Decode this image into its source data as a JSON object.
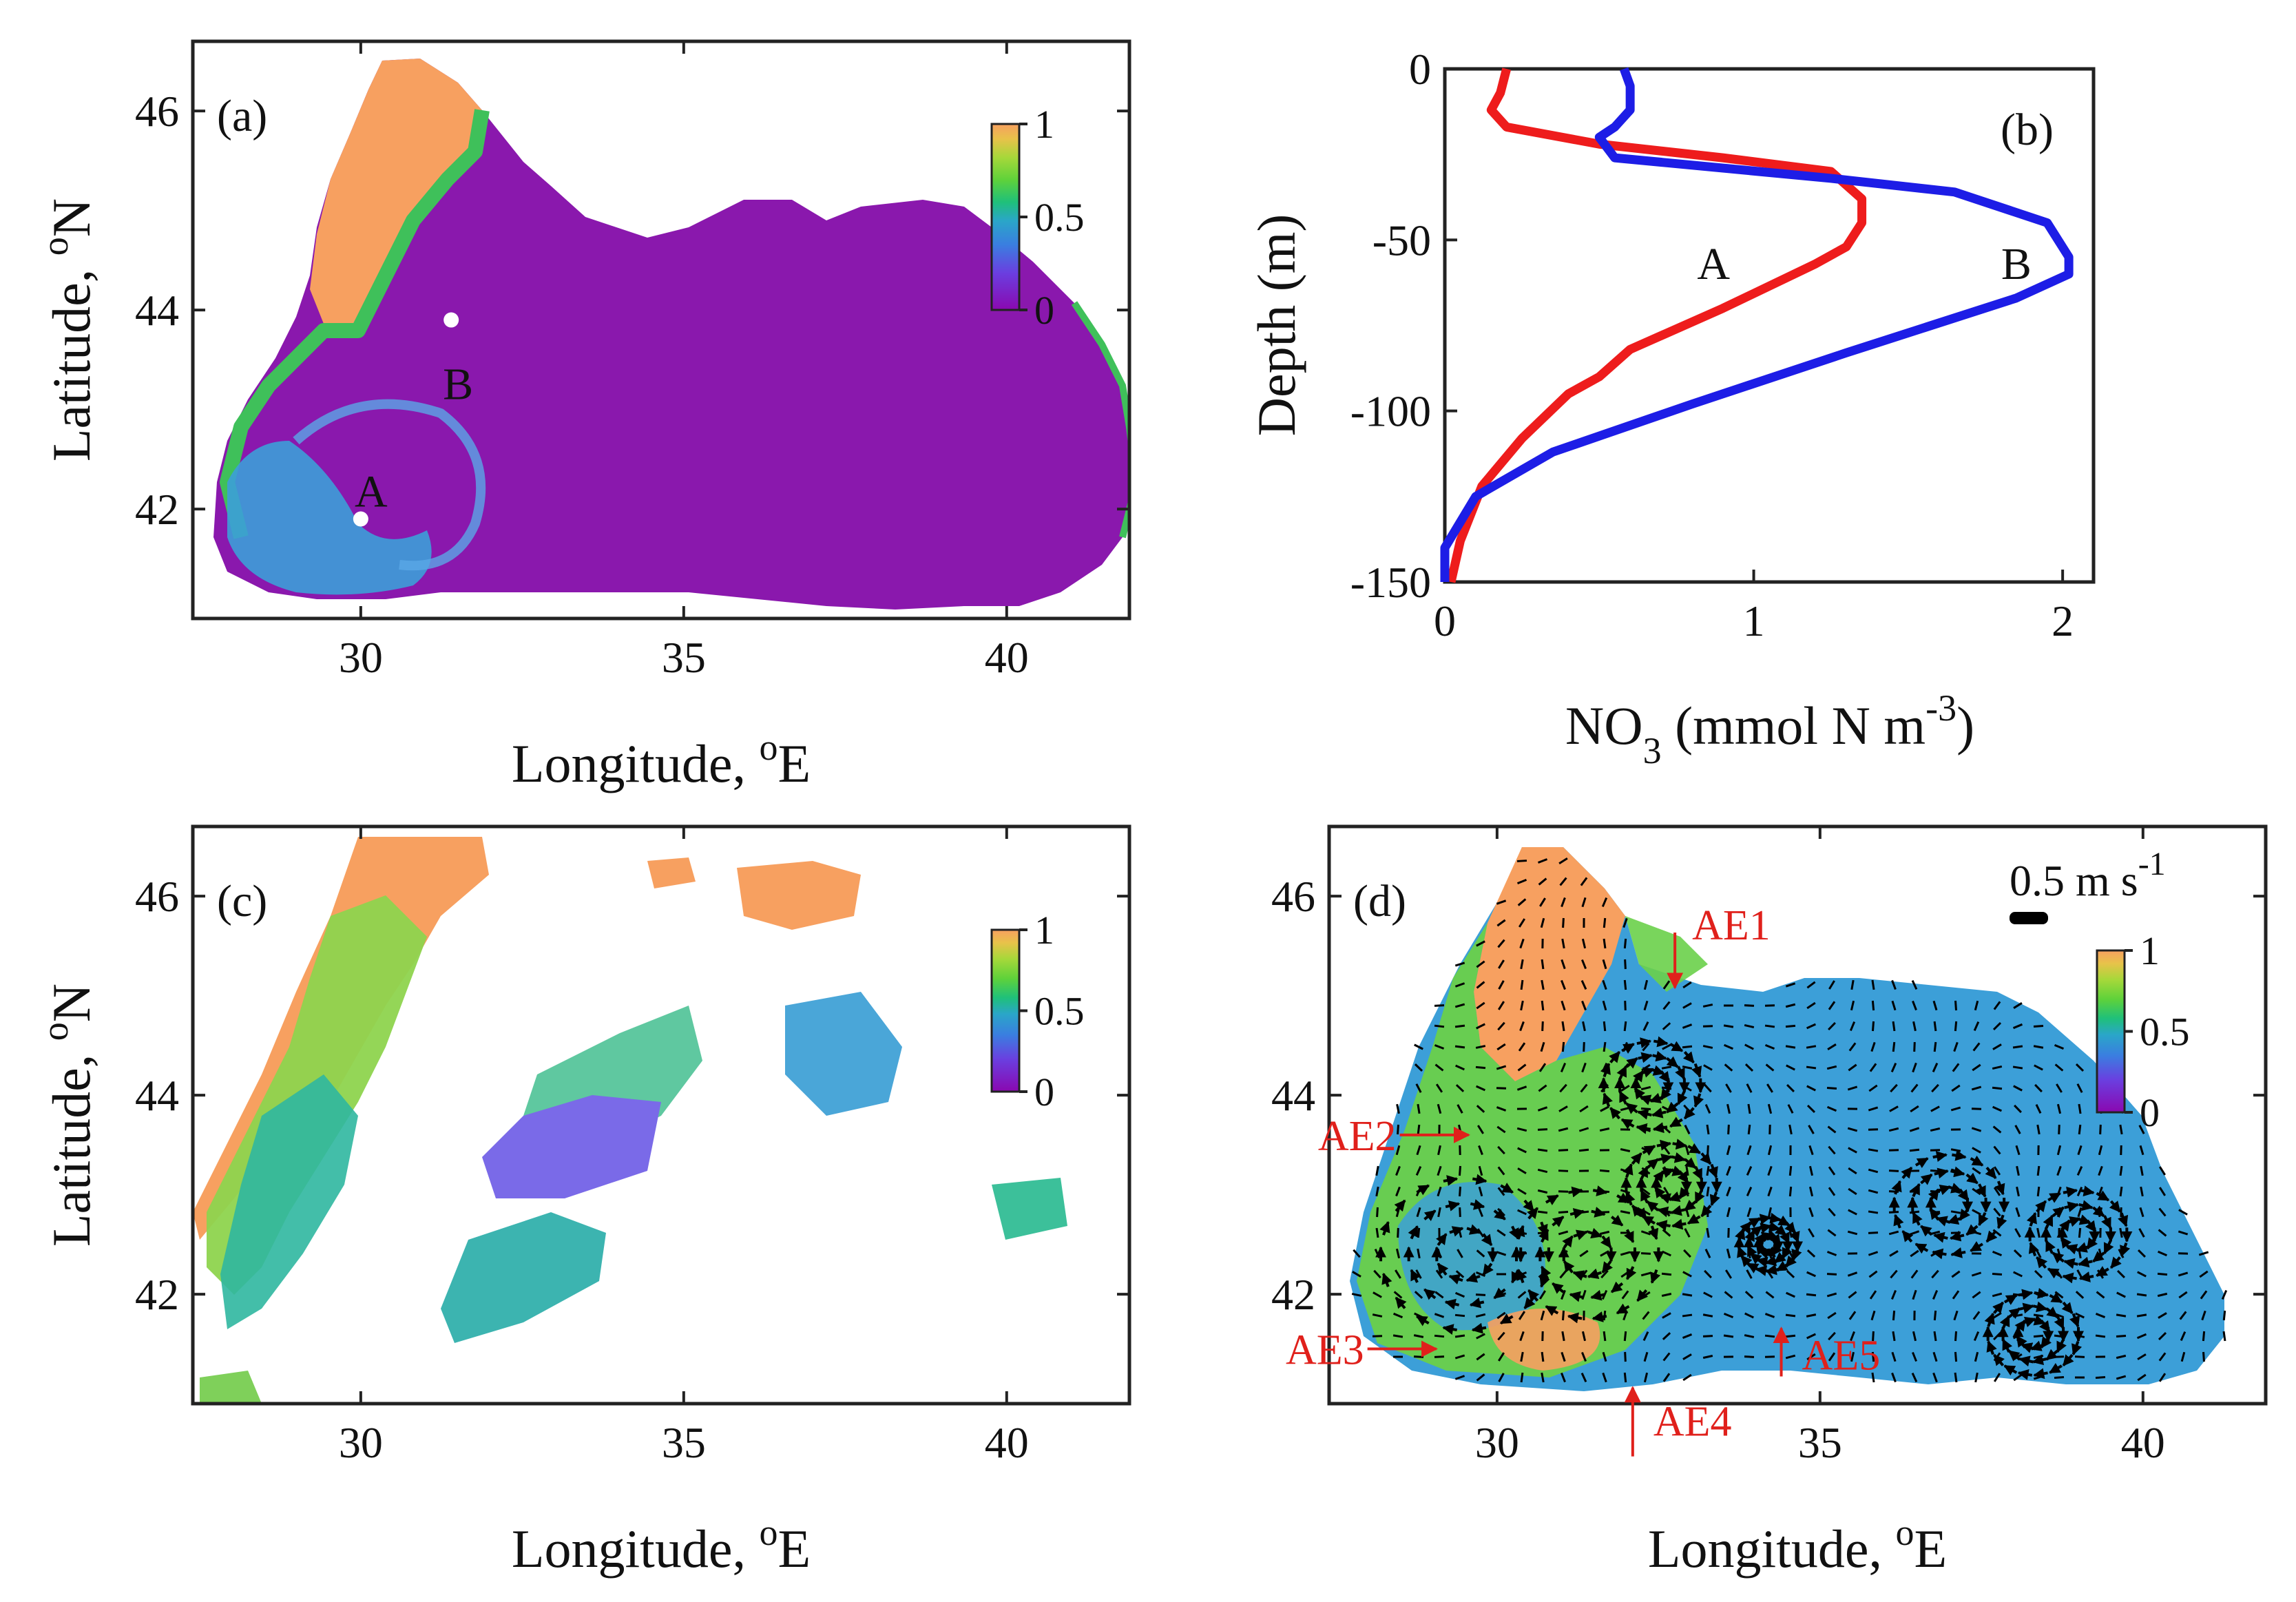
{
  "colors": {
    "orange": "#f7a060",
    "purple": "#8a18ad",
    "blue_green": "#3c9fd8",
    "red_line": "#ee1c1c",
    "blue_line": "#1d1de6",
    "annotation": "#e0201b"
  },
  "colormap": [
    "#8a08b0",
    "#6a3fe0",
    "#3a7ee0",
    "#2aa6c8",
    "#1fc07a",
    "#5fd23a",
    "#a6d83a",
    "#e8c24a",
    "#f7a060"
  ],
  "chart_data": [
    {
      "id": "a",
      "type": "heatmap",
      "panel_label": "(a)",
      "xlabel": "Longitude, ",
      "xlabel_sup": "o",
      "xlabel_tail": "E",
      "ylabel": "Latitude, ",
      "ylabel_sup": "o",
      "ylabel_tail": "N",
      "xlim": [
        27.4,
        41.9
      ],
      "ylim": [
        40.9,
        46.7
      ],
      "xticks": [
        30,
        35,
        40
      ],
      "yticks": [
        42,
        44,
        46
      ],
      "colorbar": {
        "ticks": [
          0,
          0.5,
          1
        ],
        "tick_labels": [
          "0",
          "0.5",
          "1"
        ]
      },
      "points": [
        {
          "label": "A",
          "lon": 30.0,
          "lat": 41.9
        },
        {
          "label": "B",
          "lon": 31.4,
          "lat": 43.9
        }
      ]
    },
    {
      "id": "b",
      "type": "line",
      "panel_label": "(b)",
      "xlabel": "NO",
      "xlabel_sub": "3",
      "xlabel_mid": " (mmol N m",
      "xlabel_sup": "-3",
      "xlabel_tail": ")",
      "ylabel": "Depth (m)",
      "xlim": [
        0,
        2.1
      ],
      "ylim": [
        -150,
        0
      ],
      "xticks": [
        0,
        1,
        2
      ],
      "yticks": [
        -150,
        -100,
        -50,
        0
      ],
      "series": [
        {
          "name": "A",
          "label_at": [
            0.87,
            -57
          ],
          "x": [
            0.2,
            0.18,
            0.15,
            0.2,
            0.5,
            0.9,
            1.25,
            1.35,
            1.35,
            1.3,
            1.2,
            0.9,
            0.6,
            0.5,
            0.4,
            0.25,
            0.12,
            0.05,
            0.02
          ],
          "y": [
            0,
            -7,
            -12,
            -17,
            -22,
            -26,
            -30,
            -38,
            -45,
            -52,
            -57,
            -70,
            -82,
            -90,
            -95,
            -108,
            -122,
            -138,
            -150
          ]
        },
        {
          "name": "B",
          "label_at": [
            1.85,
            -57
          ],
          "x": [
            0.58,
            0.6,
            0.6,
            0.55,
            0.5,
            0.55,
            1.25,
            1.65,
            1.95,
            2.02,
            2.02,
            1.85,
            1.3,
            0.8,
            0.35,
            0.1,
            0.0,
            0.0
          ],
          "y": [
            0,
            -5,
            -12,
            -17,
            -20,
            -26,
            -32,
            -36,
            -45,
            -55,
            -60,
            -67,
            -83,
            -98,
            -112,
            -125,
            -140,
            -150
          ]
        }
      ]
    },
    {
      "id": "c",
      "type": "heatmap",
      "panel_label": "(c)",
      "xlabel": "Longitude, ",
      "xlabel_sup": "o",
      "xlabel_tail": "E",
      "ylabel": "Latitude, ",
      "ylabel_sup": "o",
      "ylabel_tail": "N",
      "xlim": [
        27.4,
        41.9
      ],
      "ylim": [
        40.9,
        46.7
      ],
      "xticks": [
        30,
        35,
        40
      ],
      "yticks": [
        42,
        44,
        46
      ],
      "colorbar": {
        "ticks": [
          0,
          0.5,
          1
        ],
        "tick_labels": [
          "0",
          "0.5",
          "1"
        ]
      }
    },
    {
      "id": "d",
      "type": "heatmap",
      "panel_label": "(d)",
      "xlabel": "Longitude, ",
      "xlabel_sup": "o",
      "xlabel_tail": "E",
      "xlim": [
        27.4,
        41.9
      ],
      "ylim": [
        40.9,
        46.7
      ],
      "xticks": [
        30,
        35,
        40
      ],
      "yticks": [
        42,
        44,
        46
      ],
      "colorbar": {
        "ticks": [
          0,
          0.5,
          1
        ],
        "tick_labels": [
          "0",
          "0.5",
          "1"
        ]
      },
      "vector_scale": {
        "value_text": "0.5 m s",
        "value_sup": "-1"
      },
      "annotations": [
        {
          "text": "AE1",
          "lon": 33.5,
          "lat": 45.15
        },
        {
          "text": "AE2",
          "lon": 28.6,
          "lat": 43.6
        },
        {
          "text": "AE3",
          "lon": 28.1,
          "lat": 41.45
        },
        {
          "text": "AE4",
          "lon": 32.1,
          "lat": 41.2
        },
        {
          "text": "AE5",
          "lon": 34.4,
          "lat": 41.45
        }
      ],
      "eddies": [
        {
          "lon": 29.5,
          "lat": 42.4,
          "r": 1.3
        },
        {
          "lon": 31.4,
          "lat": 42.4,
          "r": 1.1
        },
        {
          "lon": 32.4,
          "lat": 44.1,
          "r": 0.75
        },
        {
          "lon": 32.7,
          "lat": 43.1,
          "r": 0.7
        },
        {
          "lon": 34.2,
          "lat": 42.5,
          "r": 0.45
        },
        {
          "lon": 37.0,
          "lat": 42.9,
          "r": 0.85
        },
        {
          "lon": 39.0,
          "lat": 42.6,
          "r": 0.75
        },
        {
          "lon": 38.3,
          "lat": 41.6,
          "r": 0.7
        }
      ]
    }
  ]
}
